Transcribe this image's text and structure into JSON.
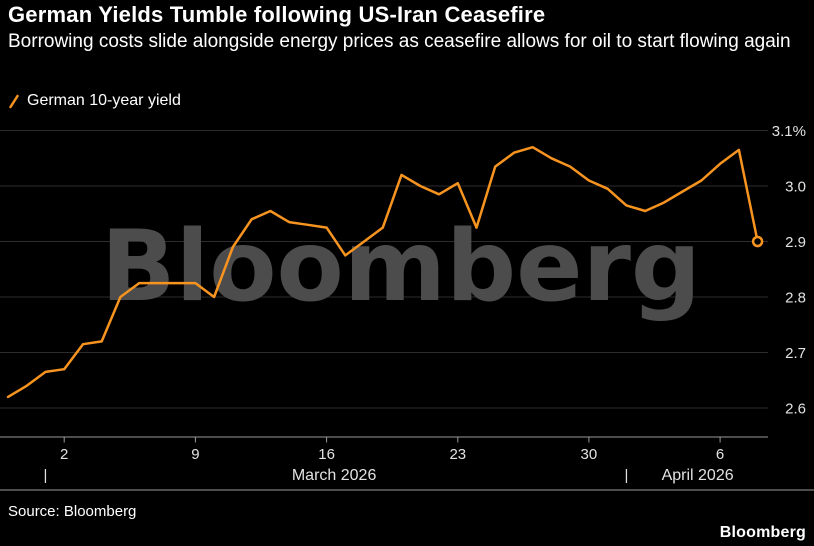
{
  "header": {
    "title": "German Yields Tumble following US-Iran Ceasefire",
    "subtitle": "Borrowing costs slide alongside energy prices as ceasefire allows for oil to start flowing again"
  },
  "legend": {
    "label": "German 10-year yield",
    "color": "#F79420"
  },
  "watermark": "Bloomberg",
  "footer": {
    "source": "Source: Bloomberg",
    "logo": "Bloomberg"
  },
  "colors": {
    "background": "#000000",
    "line": "#F79420",
    "gridline": "#2d2d2d",
    "axis": "#9a9a9a",
    "axis_text": "#e2e2e2",
    "watermark": "#4c4c4c"
  },
  "chart_data": {
    "type": "line",
    "title": "German Yields Tumble following US-Iran Ceasefire",
    "ylabel": "German 10-year yield (%)",
    "ylim": [
      2.6,
      3.1
    ],
    "grid": "horizontal",
    "legend_position": "top-left",
    "y_ticks": [
      {
        "value": 3.1,
        "label": "3.1%"
      },
      {
        "value": 3.0,
        "label": "3.0"
      },
      {
        "value": 2.9,
        "label": "2.9"
      },
      {
        "value": 2.8,
        "label": "2.8"
      },
      {
        "value": 2.7,
        "label": "2.7"
      },
      {
        "value": 2.6,
        "label": "2.6"
      }
    ],
    "x_ticks": [
      {
        "day": 3,
        "label": "2"
      },
      {
        "day": 10,
        "label": "9"
      },
      {
        "day": 17,
        "label": "16"
      },
      {
        "day": 24,
        "label": "23"
      },
      {
        "day": 31,
        "label": "30"
      },
      {
        "day": 38,
        "label": "6"
      }
    ],
    "month_markers": [
      {
        "tick_day": 2,
        "label": "March 2026",
        "label_center_day": 17.4
      },
      {
        "tick_day": 33,
        "label": "April 2026",
        "label_center_day": 36.8
      }
    ],
    "series": [
      {
        "name": "German 10-year yield",
        "color": "#F79420",
        "end_marker": true,
        "values": [
          2.62,
          2.64,
          2.665,
          2.67,
          2.715,
          2.72,
          2.8,
          2.825,
          2.825,
          2.825,
          2.825,
          2.8,
          2.89,
          2.94,
          2.955,
          2.935,
          2.93,
          2.925,
          2.875,
          2.9,
          2.925,
          3.02,
          3.0,
          2.985,
          3.005,
          2.925,
          3.035,
          3.06,
          3.07,
          3.05,
          3.035,
          3.01,
          2.995,
          2.965,
          2.955,
          2.97,
          2.99,
          3.01,
          3.04,
          3.065,
          2.9
        ]
      }
    ]
  }
}
